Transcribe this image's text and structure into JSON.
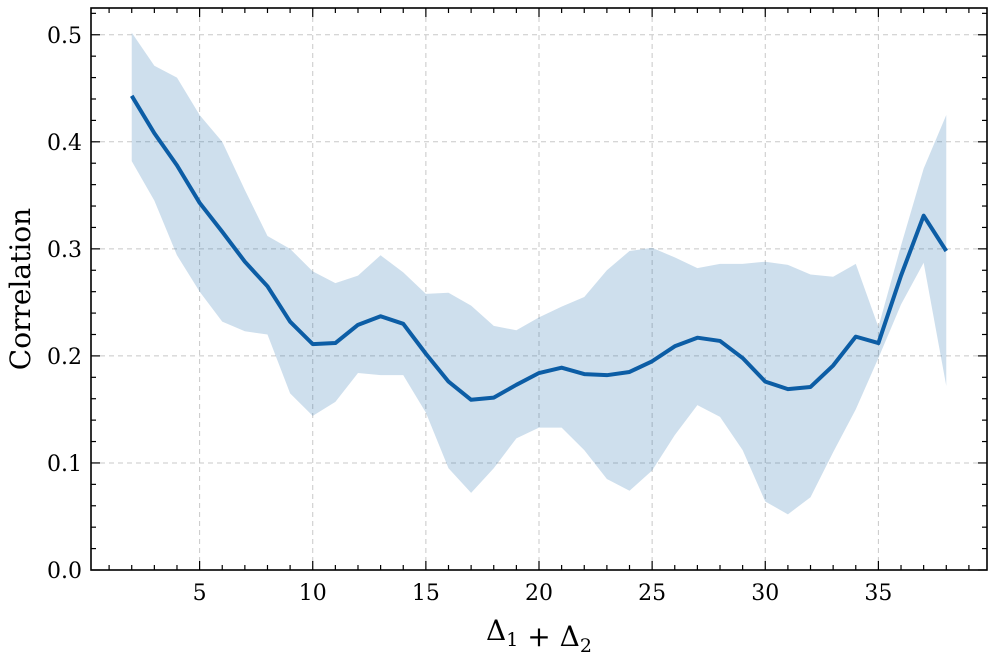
{
  "chart_data": {
    "type": "line",
    "title": "",
    "xlabel": "Δ₁ + Δ₂",
    "ylabel": "Correlation",
    "xlim": [
      0.2,
      39.8
    ],
    "ylim": [
      0.0,
      0.525
    ],
    "xticks": [
      5,
      10,
      15,
      20,
      25,
      30,
      35
    ],
    "yticks": [
      0.0,
      0.1,
      0.2,
      0.3,
      0.4,
      0.5
    ],
    "ytick_labels": [
      "0.0",
      "0.1",
      "0.2",
      "0.3",
      "0.4",
      "0.5"
    ],
    "grid": true,
    "legend": "none",
    "line_color": "#0c5da5",
    "band_color": "#0c5da5",
    "series": [
      {
        "x": [
          2,
          3,
          4,
          5,
          6,
          7,
          8,
          9,
          10,
          11,
          12,
          13,
          14,
          15,
          16,
          17,
          18,
          19,
          20,
          21,
          22,
          23,
          24,
          25,
          26,
          27,
          28,
          29,
          30,
          31,
          32,
          33,
          34,
          35,
          36,
          37,
          38
        ],
        "mean": [
          0.443,
          0.408,
          0.378,
          0.343,
          0.316,
          0.288,
          0.265,
          0.232,
          0.211,
          0.212,
          0.229,
          0.237,
          0.23,
          0.202,
          0.176,
          0.159,
          0.161,
          0.173,
          0.184,
          0.189,
          0.183,
          0.182,
          0.185,
          0.195,
          0.209,
          0.217,
          0.214,
          0.198,
          0.176,
          0.169,
          0.171,
          0.191,
          0.218,
          0.212,
          0.275,
          0.331,
          0.298
        ],
        "upper": [
          0.502,
          0.471,
          0.46,
          0.425,
          0.4,
          0.355,
          0.312,
          0.3,
          0.279,
          0.268,
          0.275,
          0.294,
          0.278,
          0.258,
          0.259,
          0.247,
          0.228,
          0.224,
          0.236,
          0.246,
          0.255,
          0.28,
          0.298,
          0.301,
          0.292,
          0.282,
          0.286,
          0.286,
          0.288,
          0.285,
          0.276,
          0.274,
          0.286,
          0.227,
          0.303,
          0.375,
          0.425
        ],
        "lower": [
          0.382,
          0.345,
          0.294,
          0.26,
          0.232,
          0.223,
          0.22,
          0.165,
          0.144,
          0.157,
          0.184,
          0.182,
          0.182,
          0.147,
          0.095,
          0.072,
          0.095,
          0.123,
          0.133,
          0.133,
          0.112,
          0.085,
          0.074,
          0.093,
          0.126,
          0.154,
          0.143,
          0.112,
          0.064,
          0.052,
          0.068,
          0.11,
          0.15,
          0.198,
          0.248,
          0.287,
          0.172
        ]
      }
    ]
  }
}
